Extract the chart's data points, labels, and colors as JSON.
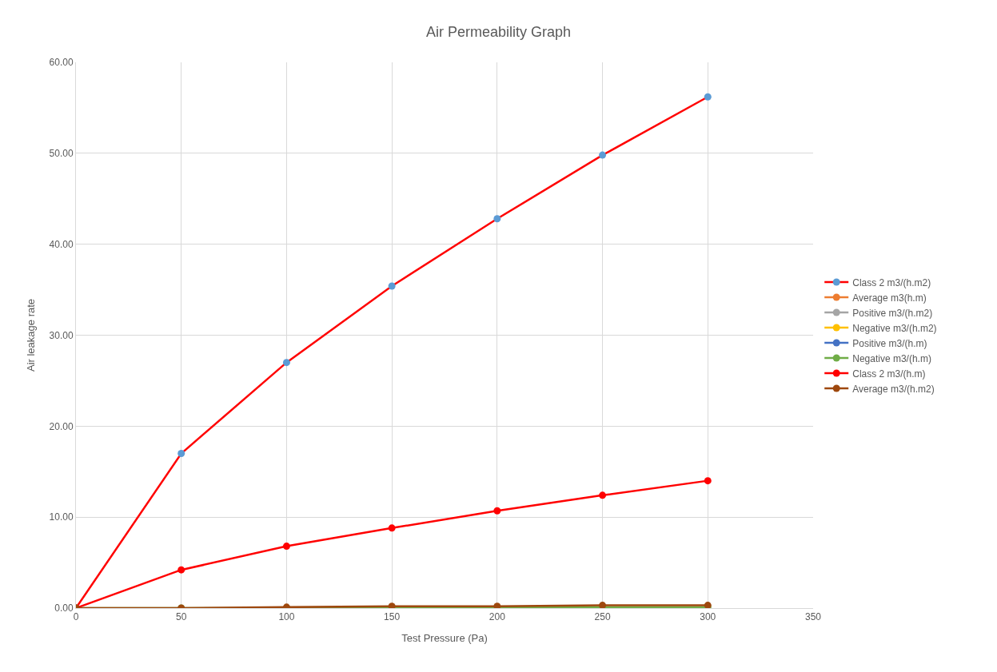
{
  "chart_data": {
    "type": "line",
    "title": "Air Permeability Graph",
    "xlabel": "Test Pressure (Pa)",
    "ylabel": "Air leakage rate",
    "x": [
      0,
      50,
      100,
      150,
      200,
      250,
      300
    ],
    "series": [
      {
        "name": "Class 2 m3/(h.m2)",
        "color": "#ff0000",
        "colors": [
          "#5b9bd5",
          "#5b9bd5",
          "#5b9bd5",
          "#5b9bd5",
          "#5b9bd5",
          "#5b9bd5",
          "#5b9bd5"
        ],
        "values": [
          0,
          17.0,
          27.0,
          35.4,
          42.8,
          49.8,
          56.2
        ]
      },
      {
        "name": "Average m3(h.m)",
        "color": "#ed7d31",
        "values": [
          null,
          null,
          null,
          null,
          null,
          null,
          null
        ]
      },
      {
        "name": "Positive m3/(h.m2)",
        "color": "#a5a5a5",
        "values": [
          null,
          null,
          null,
          null,
          null,
          null,
          null
        ]
      },
      {
        "name": "Negative m3/(h.m2)",
        "color": "#ffc000",
        "values": [
          null,
          null,
          null,
          null,
          null,
          null,
          null
        ]
      },
      {
        "name": "Positive m3/(h.m)",
        "color": "#4472c4",
        "values": [
          null,
          null,
          null,
          null,
          null,
          null,
          null
        ]
      },
      {
        "name": "Negative m3/(h.m)",
        "color": "#70ad47",
        "values": [
          0,
          0,
          0,
          0.1,
          0.1,
          0.1,
          0.1
        ]
      },
      {
        "name": "Class 2 m3/(h.m)",
        "color": "#ff0000",
        "values": [
          0,
          4.2,
          6.8,
          8.8,
          10.7,
          12.4,
          14.0
        ]
      },
      {
        "name": "Average m3/(h.m2)",
        "color": "#9e480e",
        "values": [
          0,
          0,
          0.1,
          0.2,
          0.2,
          0.3,
          0.3
        ]
      }
    ],
    "xlim": [
      0,
      350
    ],
    "xticks": [
      0,
      50,
      100,
      150,
      200,
      250,
      300,
      350
    ],
    "ylim": [
      0,
      60
    ],
    "yticks": [
      {
        "value": 0,
        "label": "0.00"
      },
      {
        "value": 10,
        "label": "10.00"
      },
      {
        "value": 20,
        "label": "20.00"
      },
      {
        "value": 30,
        "label": "30.00"
      },
      {
        "value": 40,
        "label": "40.00"
      },
      {
        "value": 50,
        "label": "50.00"
      },
      {
        "value": 60,
        "label": "60.00"
      }
    ],
    "grid": true,
    "legend": "right",
    "marker": "circle",
    "line_style": "solid"
  }
}
